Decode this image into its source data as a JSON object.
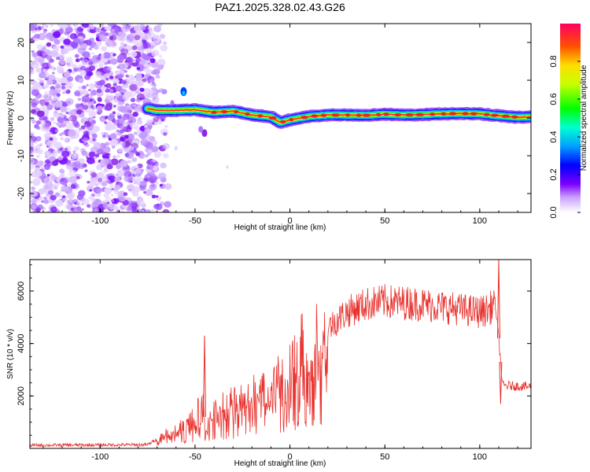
{
  "title": "PAZ1.2025.328.02.43.G26",
  "colors": {
    "trace": "#e8322e",
    "axis": "#000000"
  },
  "chart_data": [
    {
      "type": "heatmap",
      "name": "spectrogram",
      "xlabel": "Height of straight line (km)",
      "ylabel": "Frequency (Hz)",
      "xlim": [
        -137,
        127
      ],
      "ylim": [
        -25,
        25
      ],
      "xticks": [
        -100,
        -50,
        0,
        50,
        100
      ],
      "yticks": [
        -20,
        -10,
        0,
        10,
        20
      ],
      "noise_region_x": [
        -137,
        -70
      ],
      "signal_ridge": [
        {
          "x": -75,
          "f": 2.5
        },
        {
          "x": -70,
          "f": 2.0
        },
        {
          "x": -60,
          "f": 2.0
        },
        {
          "x": -50,
          "f": 2.2
        },
        {
          "x": -40,
          "f": 1.5
        },
        {
          "x": -30,
          "f": 1.8
        },
        {
          "x": -20,
          "f": 0.8
        },
        {
          "x": -10,
          "f": 0.3
        },
        {
          "x": -5,
          "f": -1.2
        },
        {
          "x": 0,
          "f": -0.5
        },
        {
          "x": 10,
          "f": 0.4
        },
        {
          "x": 20,
          "f": 0.8
        },
        {
          "x": 30,
          "f": 0.8
        },
        {
          "x": 40,
          "f": 0.7
        },
        {
          "x": 50,
          "f": 1.0
        },
        {
          "x": 60,
          "f": 0.8
        },
        {
          "x": 70,
          "f": 0.9
        },
        {
          "x": 80,
          "f": 1.1
        },
        {
          "x": 90,
          "f": 1.2
        },
        {
          "x": 100,
          "f": 1.1
        },
        {
          "x": 110,
          "f": 0.6
        },
        {
          "x": 120,
          "f": 0.2
        },
        {
          "x": 127,
          "f": 0.3
        }
      ]
    },
    {
      "type": "colorbar",
      "name": "amplitude-colorbar",
      "label": "Normalized spectral amplitude",
      "ylim": [
        0,
        1
      ],
      "ticks": [
        "0.0",
        "0.2",
        "0.4",
        "0.6",
        "0.8"
      ],
      "tick_values": [
        0,
        0.2,
        0.4,
        0.6,
        0.8
      ]
    },
    {
      "type": "line",
      "name": "snr-trace",
      "xlabel": "Height of straight line (km)",
      "ylabel": "SNR (10 * v/v)",
      "xlim": [
        -137,
        127
      ],
      "ylim": [
        0,
        7200
      ],
      "xticks": [
        -100,
        -50,
        0,
        50,
        100
      ],
      "yticks": [
        2000,
        4000,
        6000
      ],
      "envelope": [
        {
          "x": -137,
          "y": 120
        },
        {
          "x": -100,
          "y": 130
        },
        {
          "x": -75,
          "y": 140
        },
        {
          "x": -68,
          "y": 450
        },
        {
          "x": -60,
          "y": 650
        },
        {
          "x": -55,
          "y": 850
        },
        {
          "x": -50,
          "y": 1200
        },
        {
          "x": -46,
          "y": 1600
        },
        {
          "x": -44,
          "y": 800
        },
        {
          "x": -40,
          "y": 1300
        },
        {
          "x": -30,
          "y": 1700
        },
        {
          "x": -20,
          "y": 2000
        },
        {
          "x": -10,
          "y": 2400
        },
        {
          "x": 0,
          "y": 3200
        },
        {
          "x": 10,
          "y": 3900
        },
        {
          "x": 20,
          "y": 4600
        },
        {
          "x": 30,
          "y": 5200
        },
        {
          "x": 40,
          "y": 5500
        },
        {
          "x": 50,
          "y": 5600
        },
        {
          "x": 60,
          "y": 5550
        },
        {
          "x": 70,
          "y": 5500
        },
        {
          "x": 80,
          "y": 5400
        },
        {
          "x": 90,
          "y": 5300
        },
        {
          "x": 100,
          "y": 5200
        },
        {
          "x": 105,
          "y": 5300
        },
        {
          "x": 108,
          "y": 5600
        },
        {
          "x": 110,
          "y": 4200
        },
        {
          "x": 112,
          "y": 2400
        },
        {
          "x": 127,
          "y": 2350
        }
      ],
      "annotations": [
        {
          "x": -45,
          "y": 4300,
          "label": ""
        },
        {
          "x": 110,
          "y": 7200,
          "label": ""
        },
        {
          "x": 111,
          "y": 1700,
          "label": ""
        }
      ]
    }
  ]
}
